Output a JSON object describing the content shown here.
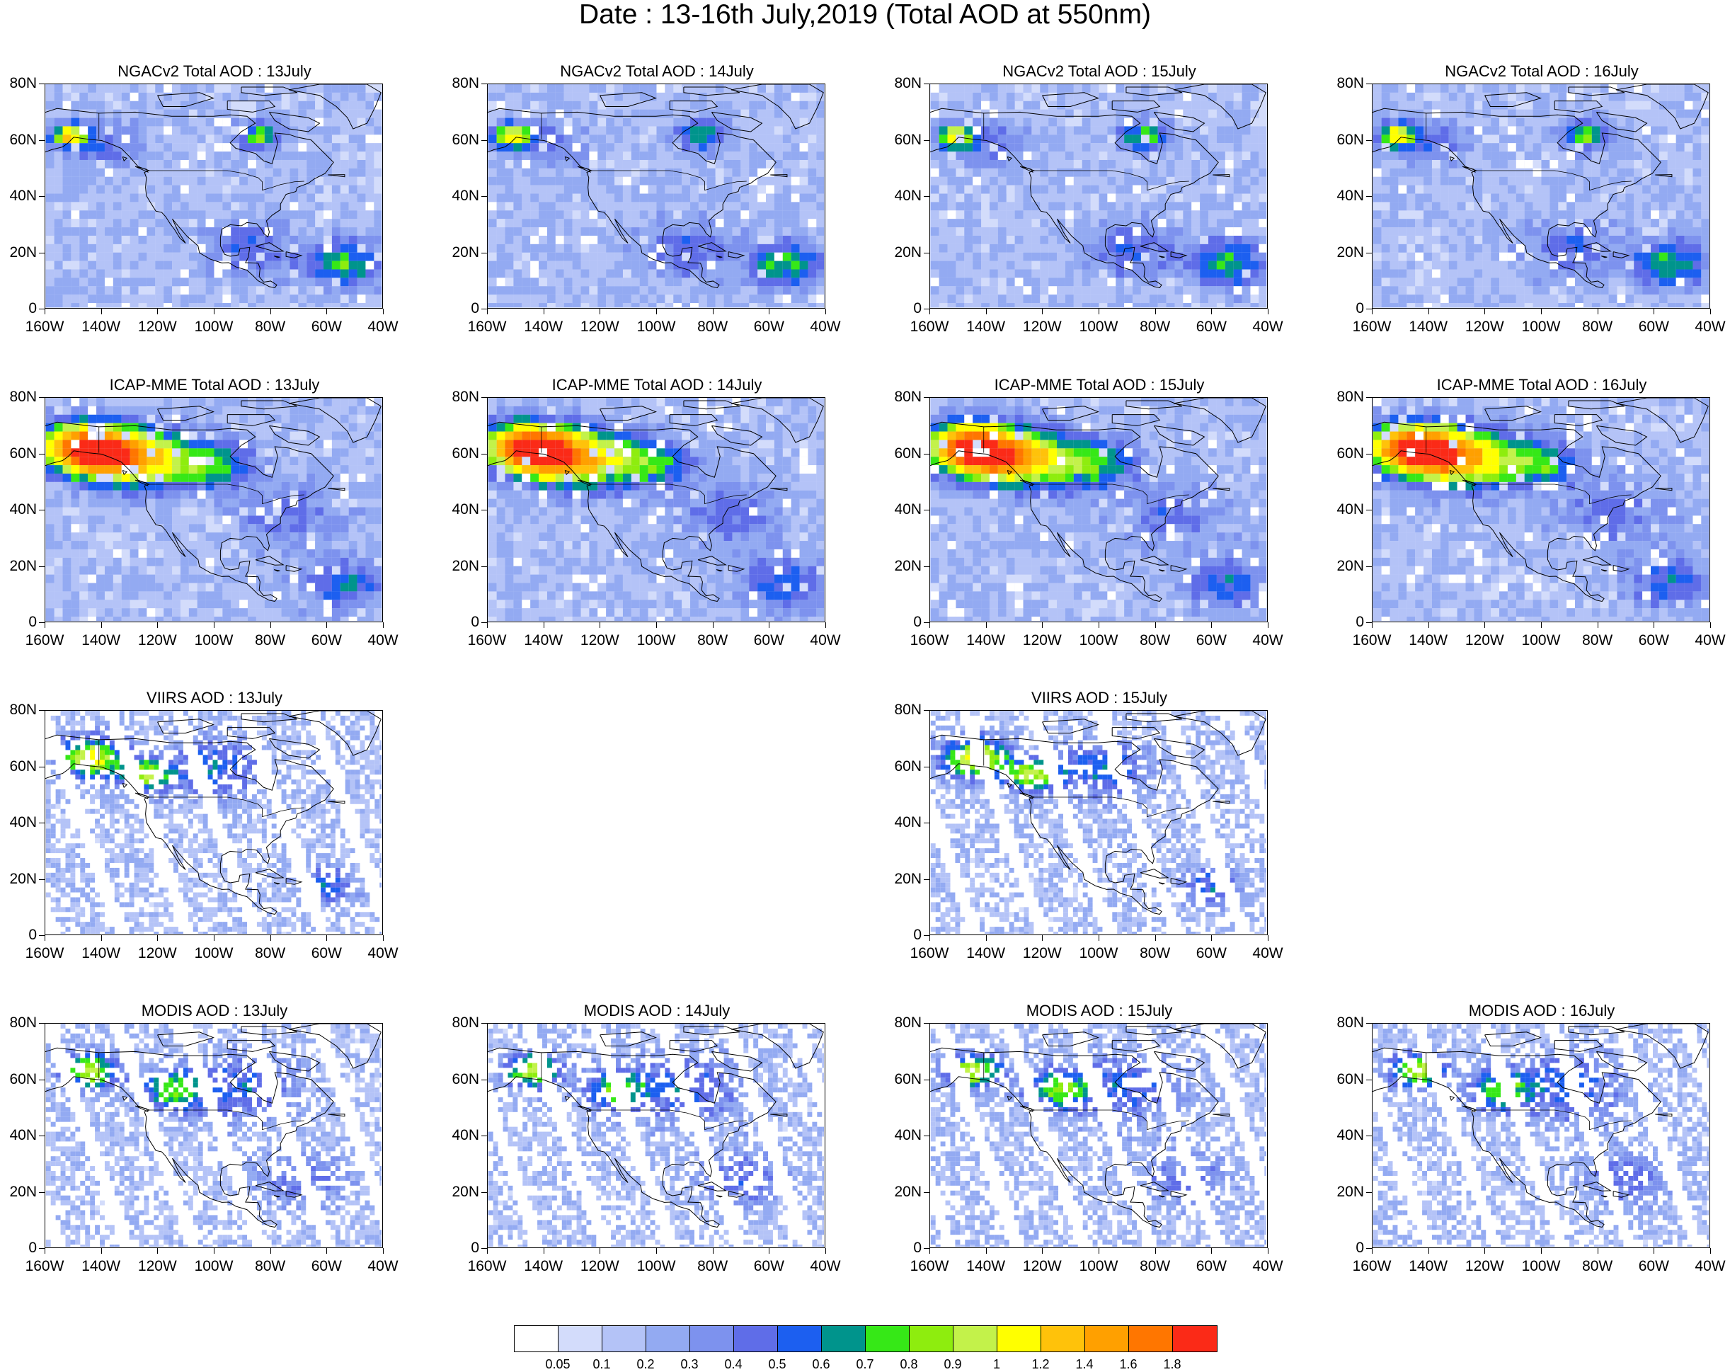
{
  "title": "Date : 13-16th July,2019 (Total AOD at 550nm)",
  "axes": {
    "y_ticks": [
      "80N",
      "60N",
      "40N",
      "20N",
      "0"
    ],
    "x_ticks": [
      "160W",
      "140W",
      "120W",
      "100W",
      "80W",
      "60W",
      "40W"
    ]
  },
  "panels": [
    {
      "title": "NGACv2 Total AOD : 13July",
      "source": "NGACv2",
      "date": "13July"
    },
    {
      "title": "NGACv2 Total AOD : 14July",
      "source": "NGACv2",
      "date": "14July"
    },
    {
      "title": "NGACv2 Total AOD : 15July",
      "source": "NGACv2",
      "date": "15July"
    },
    {
      "title": "NGACv2 Total AOD : 16July",
      "source": "NGACv2",
      "date": "16July"
    },
    {
      "title": "ICAP-MME Total AOD : 13July",
      "source": "ICAP-MME",
      "date": "13July"
    },
    {
      "title": "ICAP-MME Total AOD : 14July",
      "source": "ICAP-MME",
      "date": "14July"
    },
    {
      "title": "ICAP-MME Total AOD : 15July",
      "source": "ICAP-MME",
      "date": "15July"
    },
    {
      "title": "ICAP-MME Total AOD : 16July",
      "source": "ICAP-MME",
      "date": "16July"
    },
    {
      "title": "VIIRS AOD : 13July",
      "source": "VIIRS",
      "date": "13July"
    },
    {
      "title": "VIIRS AOD : 15July",
      "source": "VIIRS",
      "date": "15July"
    },
    {
      "title": "MODIS AOD : 13July",
      "source": "MODIS",
      "date": "13July"
    },
    {
      "title": "MODIS AOD : 14July",
      "source": "MODIS",
      "date": "14July"
    },
    {
      "title": "MODIS AOD : 15July",
      "source": "MODIS",
      "date": "15July"
    },
    {
      "title": "MODIS AOD : 16July",
      "source": "MODIS",
      "date": "16July"
    }
  ],
  "colorbar": {
    "labels": [
      "0.05",
      "0.1",
      "0.2",
      "0.3",
      "0.4",
      "0.5",
      "0.6",
      "0.7",
      "0.8",
      "0.9",
      "1",
      "1.2",
      "1.4",
      "1.6",
      "1.8"
    ],
    "colors": [
      "#ffffff",
      "#d3dcfb",
      "#b4c3f7",
      "#93aaf2",
      "#7d92ee",
      "#5f6de8",
      "#1c5ff0",
      "#00948c",
      "#36e817",
      "#8eed0e",
      "#c3f24a",
      "#ffff00",
      "#ffc20a",
      "#ffa000",
      "#ff7600",
      "#fb2a17"
    ]
  },
  "map": {
    "land_outline": "#000000",
    "background": "#d3dcfb"
  }
}
